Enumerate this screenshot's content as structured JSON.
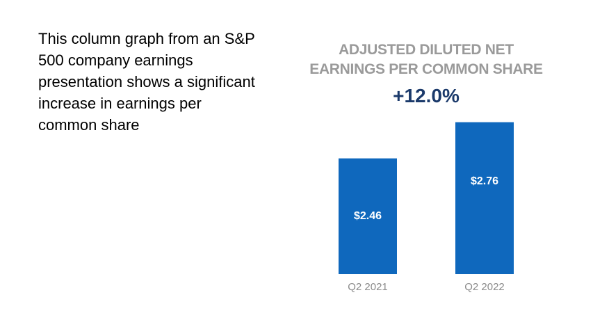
{
  "description": "This column graph from an S&P 500 company earnings presentation shows a significant increase in earnings per common share",
  "chart_data": {
    "type": "bar",
    "title": "ADJUSTED DILUTED NET EARNINGS PER COMMON SHARE",
    "subtitle": "+12.0%",
    "categories": [
      "Q2 2021",
      "Q2 2022"
    ],
    "values": [
      2.46,
      2.76
    ],
    "value_labels": [
      "$2.46",
      "$2.76"
    ],
    "color": "#0f68bd",
    "ylim": [
      1.5,
      2.85
    ]
  }
}
